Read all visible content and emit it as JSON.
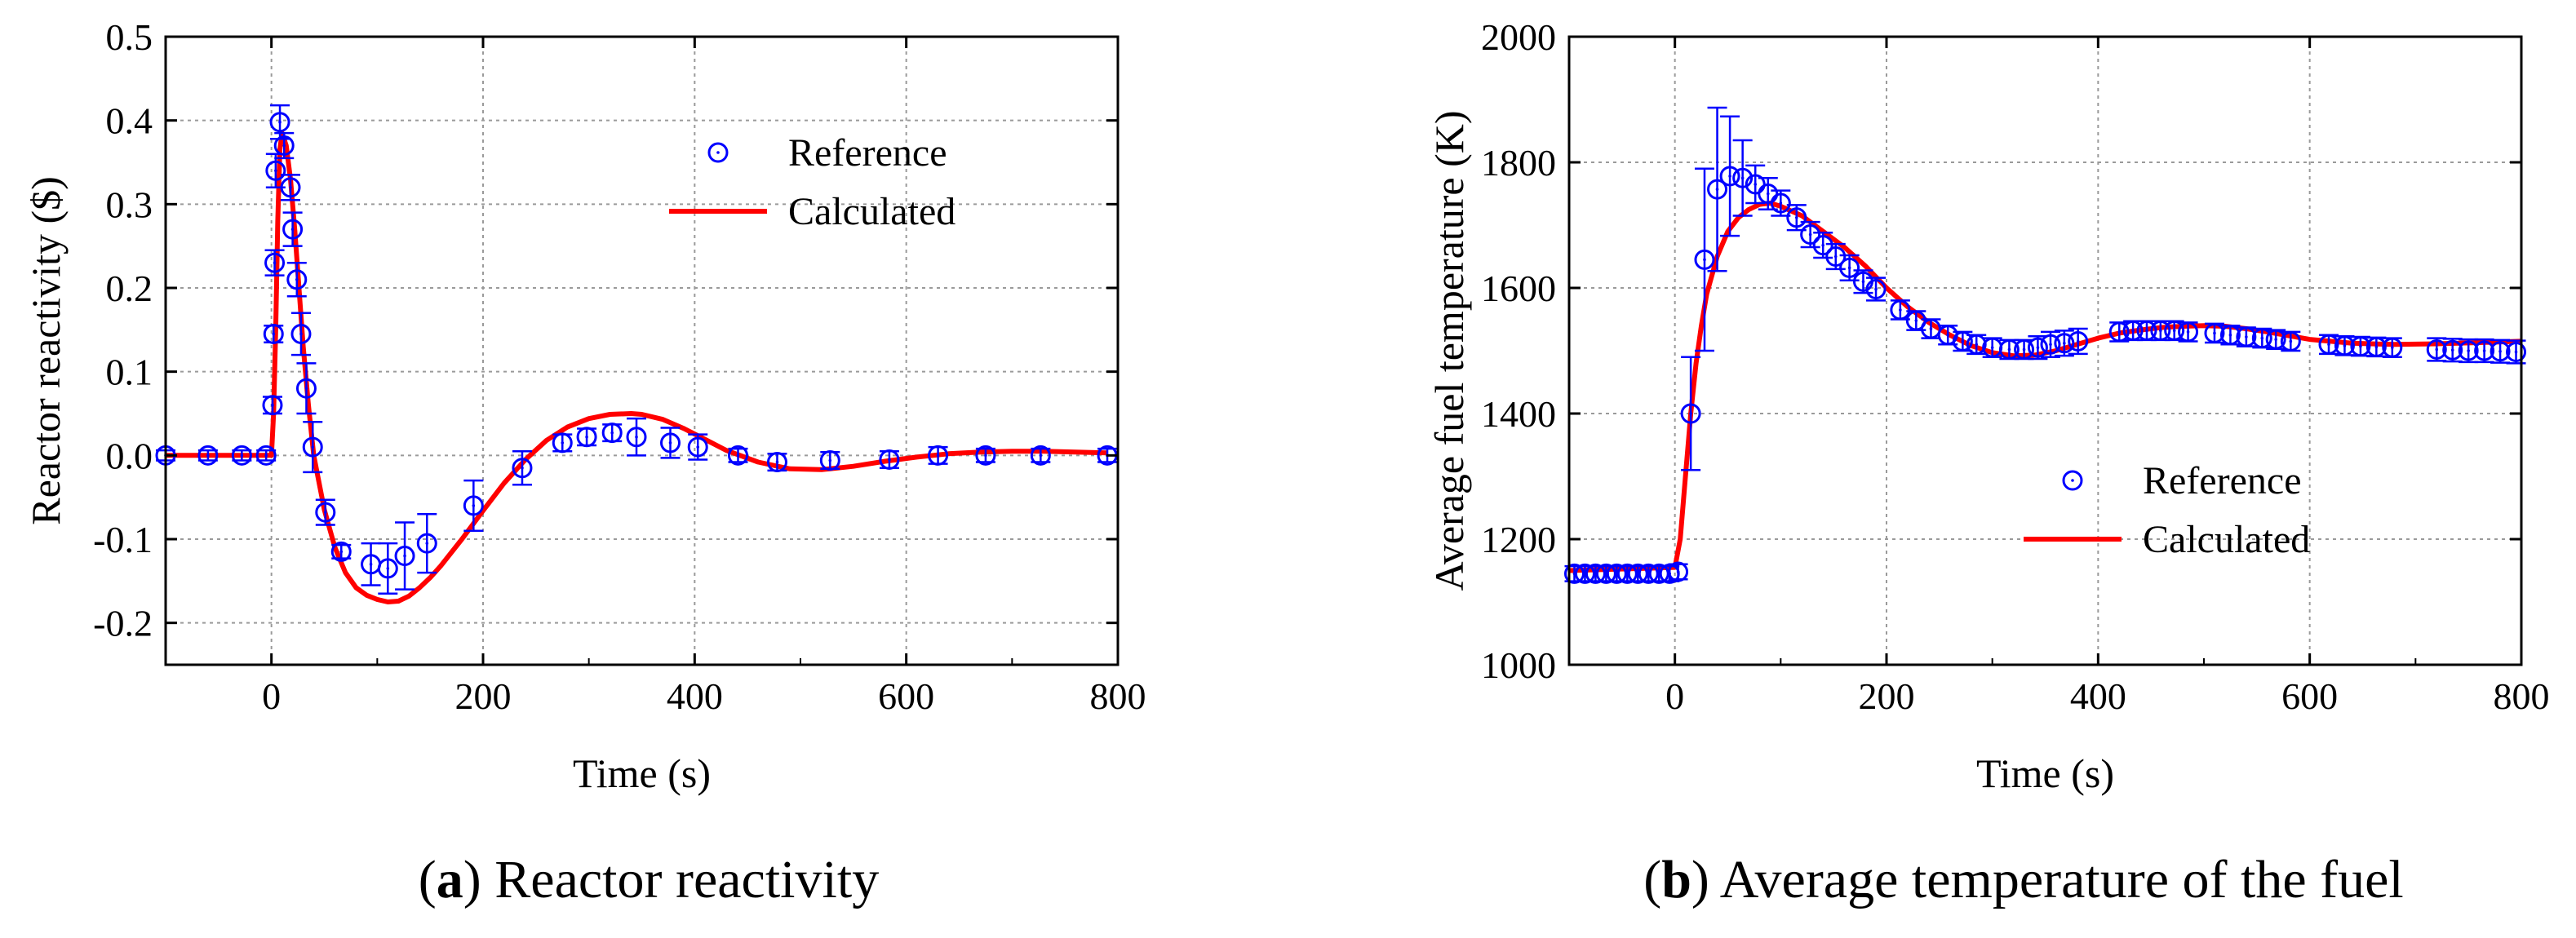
{
  "figure": {
    "captions": [
      {
        "letter": "a",
        "text": " Reactor reactivity"
      },
      {
        "letter": "b",
        "text": " Average temperature of the fuel"
      }
    ]
  },
  "colors": {
    "reference": "#0000ff",
    "calculated": "#ff0000",
    "grid": "#9a9a9a",
    "axis": "#000000"
  },
  "chart_data": [
    {
      "type": "line",
      "panel": "a",
      "xlabel": "Time (s)",
      "ylabel": "Reactor reactivity ($)",
      "xlim": [
        -100,
        800
      ],
      "ylim": [
        -0.25,
        0.5
      ],
      "xticks": [
        0,
        200,
        400,
        600,
        800
      ],
      "yticks": [
        -0.2,
        -0.1,
        0.0,
        0.1,
        0.2,
        0.3,
        0.4,
        0.5
      ],
      "ytick_labels": [
        "-0.2",
        "-0.1",
        "0.0",
        "0.1",
        "0.2",
        "0.3",
        "0.4",
        "0.5"
      ],
      "grid": true,
      "legend_position": "top-right",
      "series": [
        {
          "name": "Reference",
          "kind": "scatter-errorbar",
          "points": [
            [
              -100,
              0,
              0.006
            ],
            [
              -60,
              0,
              0.006
            ],
            [
              -28,
              0,
              0.006
            ],
            [
              -5,
              0,
              0.006
            ],
            [
              1,
              0.06,
              0.01
            ],
            [
              2,
              0.145,
              0.01
            ],
            [
              3,
              0.23,
              0.015
            ],
            [
              4,
              0.34,
              0.02
            ],
            [
              8,
              0.398,
              0.02
            ],
            [
              12,
              0.37,
              0.015
            ],
            [
              18,
              0.32,
              0.015
            ],
            [
              20,
              0.27,
              0.02
            ],
            [
              24,
              0.21,
              0.02
            ],
            [
              28,
              0.145,
              0.025
            ],
            [
              33,
              0.08,
              0.03
            ],
            [
              39,
              0.01,
              0.03
            ],
            [
              51,
              -0.068,
              0.015
            ],
            [
              66,
              -0.115,
              0.008
            ],
            [
              94,
              -0.13,
              0.025
            ],
            [
              110,
              -0.135,
              0.03
            ],
            [
              126,
              -0.12,
              0.04
            ],
            [
              147,
              -0.105,
              0.035
            ],
            [
              191,
              -0.06,
              0.03
            ],
            [
              237,
              -0.015,
              0.02
            ],
            [
              275,
              0.015,
              0.01
            ],
            [
              298,
              0.022,
              0.01
            ],
            [
              322,
              0.027,
              0.01
            ],
            [
              345,
              0.022,
              0.022
            ],
            [
              377,
              0.015,
              0.018
            ],
            [
              403,
              0.01,
              0.015
            ],
            [
              441,
              0,
              0.008
            ],
            [
              478,
              -0.008,
              0.01
            ],
            [
              528,
              -0.006,
              0.01
            ],
            [
              584,
              -0.005,
              0.01
            ],
            [
              630,
              0,
              0.01
            ],
            [
              675,
              0,
              0.008
            ],
            [
              727,
              0,
              0.008
            ],
            [
              790,
              0,
              0.008
            ]
          ]
        },
        {
          "name": "Calculated",
          "kind": "line",
          "x": [
            -100,
            -20,
            0,
            2,
            4,
            6,
            8,
            10,
            14,
            18,
            22,
            26,
            30,
            35,
            40,
            50,
            60,
            70,
            80,
            90,
            100,
            110,
            120,
            130,
            140,
            150,
            160,
            180,
            200,
            220,
            240,
            260,
            280,
            300,
            320,
            340,
            350,
            370,
            390,
            410,
            430,
            460,
            490,
            520,
            550,
            580,
            610,
            640,
            670,
            700,
            730,
            760,
            790
          ],
          "y": [
            0,
            0,
            0,
            0.05,
            0.15,
            0.28,
            0.365,
            0.385,
            0.37,
            0.33,
            0.27,
            0.2,
            0.13,
            0.06,
            0.0,
            -0.065,
            -0.11,
            -0.14,
            -0.158,
            -0.167,
            -0.172,
            -0.175,
            -0.174,
            -0.168,
            -0.158,
            -0.146,
            -0.132,
            -0.1,
            -0.066,
            -0.033,
            -0.005,
            0.018,
            0.034,
            0.044,
            0.049,
            0.05,
            0.049,
            0.043,
            0.032,
            0.019,
            0.006,
            -0.008,
            -0.016,
            -0.017,
            -0.013,
            -0.007,
            -0.002,
            0.002,
            0.004,
            0.005,
            0.005,
            0.004,
            0.003
          ]
        }
      ]
    },
    {
      "type": "line",
      "panel": "b",
      "xlabel": "Time (s)",
      "ylabel": "Average fuel temperature (K)",
      "xlim": [
        -100,
        800
      ],
      "ylim": [
        1000,
        2000
      ],
      "xticks": [
        0,
        200,
        400,
        600,
        800
      ],
      "yticks": [
        1000,
        1200,
        1400,
        1600,
        1800,
        2000
      ],
      "ytick_labels": [
        "1000",
        "1200",
        "1400",
        "1600",
        "1800",
        "2000"
      ],
      "grid": true,
      "legend_position": "middle-right",
      "series": [
        {
          "name": "Reference",
          "kind": "scatter-errorbar",
          "points": [
            [
              -95,
              1145,
              12
            ],
            [
              -85,
              1145,
              12
            ],
            [
              -75,
              1145,
              12
            ],
            [
              -65,
              1145,
              12
            ],
            [
              -55,
              1145,
              12
            ],
            [
              -45,
              1145,
              12
            ],
            [
              -35,
              1145,
              12
            ],
            [
              -25,
              1145,
              12
            ],
            [
              -15,
              1145,
              12
            ],
            [
              -5,
              1145,
              12
            ],
            [
              3,
              1148,
              12
            ],
            [
              15,
              1400,
              90
            ],
            [
              28,
              1645,
              145
            ],
            [
              40,
              1757,
              130
            ],
            [
              52,
              1778,
              95
            ],
            [
              64,
              1775,
              60
            ],
            [
              76,
              1765,
              30
            ],
            [
              88,
              1750,
              25
            ],
            [
              100,
              1735,
              20
            ],
            [
              115,
              1712,
              20
            ],
            [
              128,
              1685,
              20
            ],
            [
              140,
              1668,
              20
            ],
            [
              152,
              1650,
              20
            ],
            [
              165,
              1632,
              20
            ],
            [
              178,
              1610,
              18
            ],
            [
              190,
              1598,
              18
            ],
            [
              213,
              1565,
              15
            ],
            [
              228,
              1548,
              15
            ],
            [
              242,
              1535,
              15
            ],
            [
              258,
              1525,
              15
            ],
            [
              272,
              1515,
              15
            ],
            [
              285,
              1510,
              15
            ],
            [
              300,
              1505,
              15
            ],
            [
              316,
              1502,
              15
            ],
            [
              330,
              1502,
              15
            ],
            [
              343,
              1505,
              18
            ],
            [
              355,
              1510,
              20
            ],
            [
              368,
              1512,
              20
            ],
            [
              381,
              1515,
              20
            ],
            [
              420,
              1530,
              15
            ],
            [
              433,
              1532,
              15
            ],
            [
              446,
              1532,
              15
            ],
            [
              459,
              1532,
              15
            ],
            [
              472,
              1532,
              15
            ],
            [
              485,
              1530,
              15
            ],
            [
              510,
              1528,
              15
            ],
            [
              525,
              1525,
              15
            ],
            [
              540,
              1522,
              15
            ],
            [
              555,
              1520,
              15
            ],
            [
              568,
              1518,
              15
            ],
            [
              582,
              1515,
              15
            ],
            [
              618,
              1510,
              15
            ],
            [
              633,
              1508,
              15
            ],
            [
              648,
              1507,
              15
            ],
            [
              663,
              1506,
              15
            ],
            [
              678,
              1505,
              15
            ],
            [
              720,
              1502,
              18
            ],
            [
              735,
              1501,
              18
            ],
            [
              750,
              1500,
              18
            ],
            [
              765,
              1500,
              18
            ],
            [
              780,
              1499,
              18
            ],
            [
              795,
              1498,
              18
            ]
          ]
        },
        {
          "name": "Calculated",
          "kind": "line",
          "x": [
            -100,
            0,
            5,
            10,
            15,
            20,
            25,
            30,
            40,
            50,
            60,
            70,
            80,
            90,
            100,
            120,
            140,
            160,
            180,
            200,
            220,
            240,
            260,
            280,
            300,
            320,
            340,
            360,
            380,
            400,
            420,
            440,
            460,
            480,
            500,
            520,
            540,
            560,
            580,
            600,
            640,
            680,
            720,
            760,
            800
          ],
          "y": [
            1150,
            1155,
            1200,
            1300,
            1400,
            1480,
            1540,
            1590,
            1650,
            1690,
            1712,
            1725,
            1733,
            1735,
            1730,
            1715,
            1690,
            1665,
            1635,
            1600,
            1570,
            1545,
            1525,
            1508,
            1497,
            1492,
            1493,
            1500,
            1510,
            1520,
            1528,
            1533,
            1537,
            1539,
            1540,
            1539,
            1535,
            1530,
            1524,
            1518,
            1512,
            1510,
            1511,
            1513,
            1515
          ]
        }
      ]
    }
  ]
}
